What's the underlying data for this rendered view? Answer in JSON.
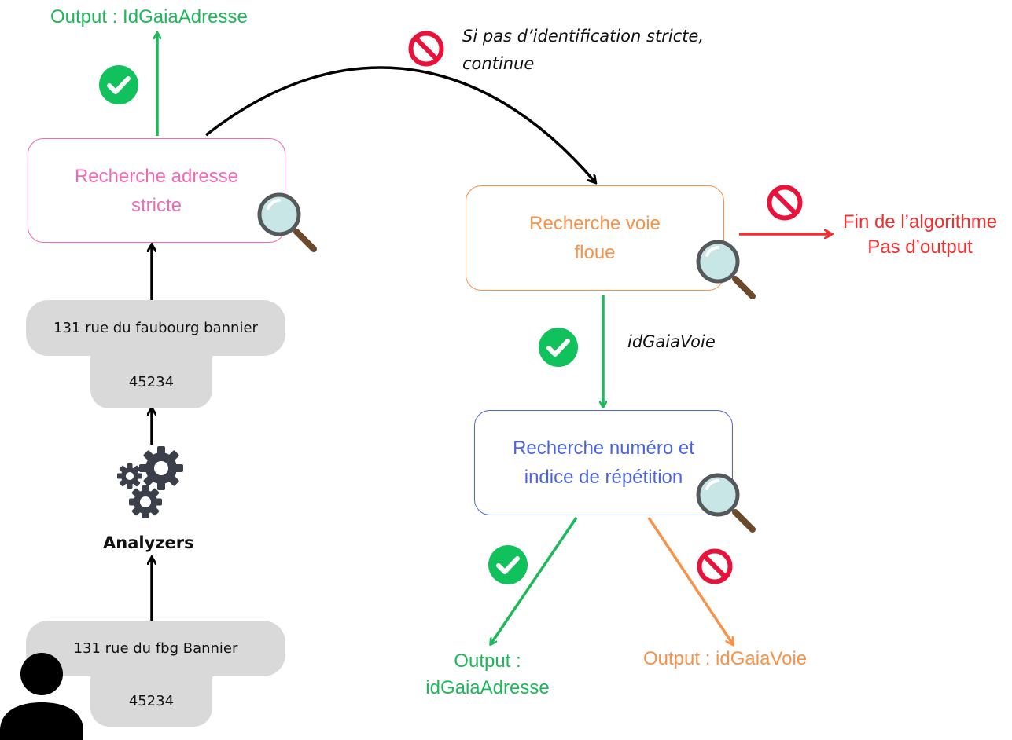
{
  "nodes": {
    "strict_search": "Recherche adresse\nstricte",
    "fuzzy_street": "Recherche voie\nfloue",
    "number_search": "Recherche numéro et\nindice de répétition"
  },
  "inputs": {
    "parsed_street": "131 rue du faubourg bannier",
    "parsed_zip": "45234",
    "raw_street": "131 rue du fbg  Bannier",
    "raw_zip": "45234"
  },
  "labels": {
    "analyzers": "Analyzers",
    "output_strict": "Output : IdGaiaAdresse",
    "no_strict_note": "Si pas d’identification stricte,\ncontinue",
    "end_algo": "Fin de l’algorithme\nPas d’output",
    "id_voie": "idGaiaVoie",
    "output_adresse": "Output :\nidGaiaAdresse",
    "output_voie": "Output : idGaiaVoie"
  },
  "colors": {
    "green": "#1cb85a",
    "pink": "#f06bb7",
    "orange": "#f7924a",
    "blue": "#4d64e0",
    "red": "#f03030",
    "check": "#11c15b",
    "forbidden": "#e8123b",
    "gear": "#3a3f4a"
  },
  "icons": [
    "check-icon",
    "forbidden-icon",
    "magnifier-icon",
    "gears-icon",
    "user-icon"
  ]
}
